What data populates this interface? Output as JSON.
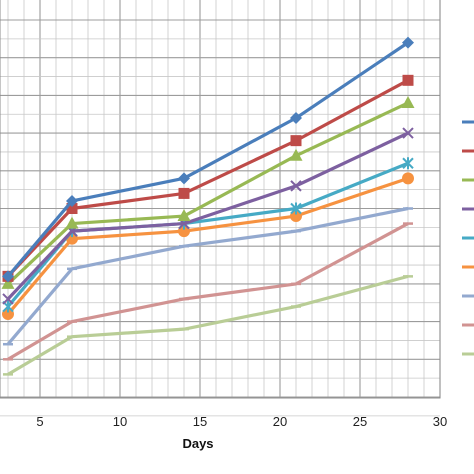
{
  "chart_data": {
    "type": "line",
    "title": "",
    "xlabel": "Days",
    "ylabel": "",
    "xlim": [
      3,
      30
    ],
    "x_ticks": [
      5,
      10,
      15,
      20,
      25,
      30
    ],
    "x_tick_labels": [
      "5",
      "10",
      "15",
      "20",
      "25",
      "30"
    ],
    "grid": true,
    "legend": "right (names cropped)",
    "x": [
      3,
      7,
      14,
      21,
      28
    ],
    "series": [
      {
        "color": "#4a7ebb",
        "marker": "diamond",
        "values": [
          0.84,
          0.74,
          0.71,
          0.63,
          0.53
        ]
      },
      {
        "color": "#be4b48",
        "marker": "square",
        "values": [
          0.84,
          0.75,
          0.73,
          0.66,
          0.58
        ]
      },
      {
        "color": "#98b954",
        "marker": "triangle",
        "values": [
          0.85,
          0.77,
          0.76,
          0.68,
          0.61
        ]
      },
      {
        "color": "#7d60a0",
        "marker": "x",
        "values": [
          0.87,
          0.78,
          0.77,
          0.72,
          0.65
        ]
      },
      {
        "color": "#46aac5",
        "marker": "star",
        "values": [
          0.88,
          0.78,
          0.77,
          0.75,
          0.69
        ]
      },
      {
        "color": "#f69240",
        "marker": "circle",
        "values": [
          0.89,
          0.79,
          0.78,
          0.76,
          0.71
        ]
      },
      {
        "color": "#93a9cf",
        "marker": "dash",
        "values": [
          0.93,
          0.83,
          0.8,
          0.78,
          0.75
        ]
      },
      {
        "color": "#d19392",
        "marker": "dash",
        "values": [
          0.95,
          0.9,
          0.87,
          0.85,
          0.77
        ]
      },
      {
        "color": "#b9cd96",
        "marker": "dash",
        "values": [
          0.97,
          0.92,
          0.91,
          0.88,
          0.84
        ]
      }
    ]
  }
}
